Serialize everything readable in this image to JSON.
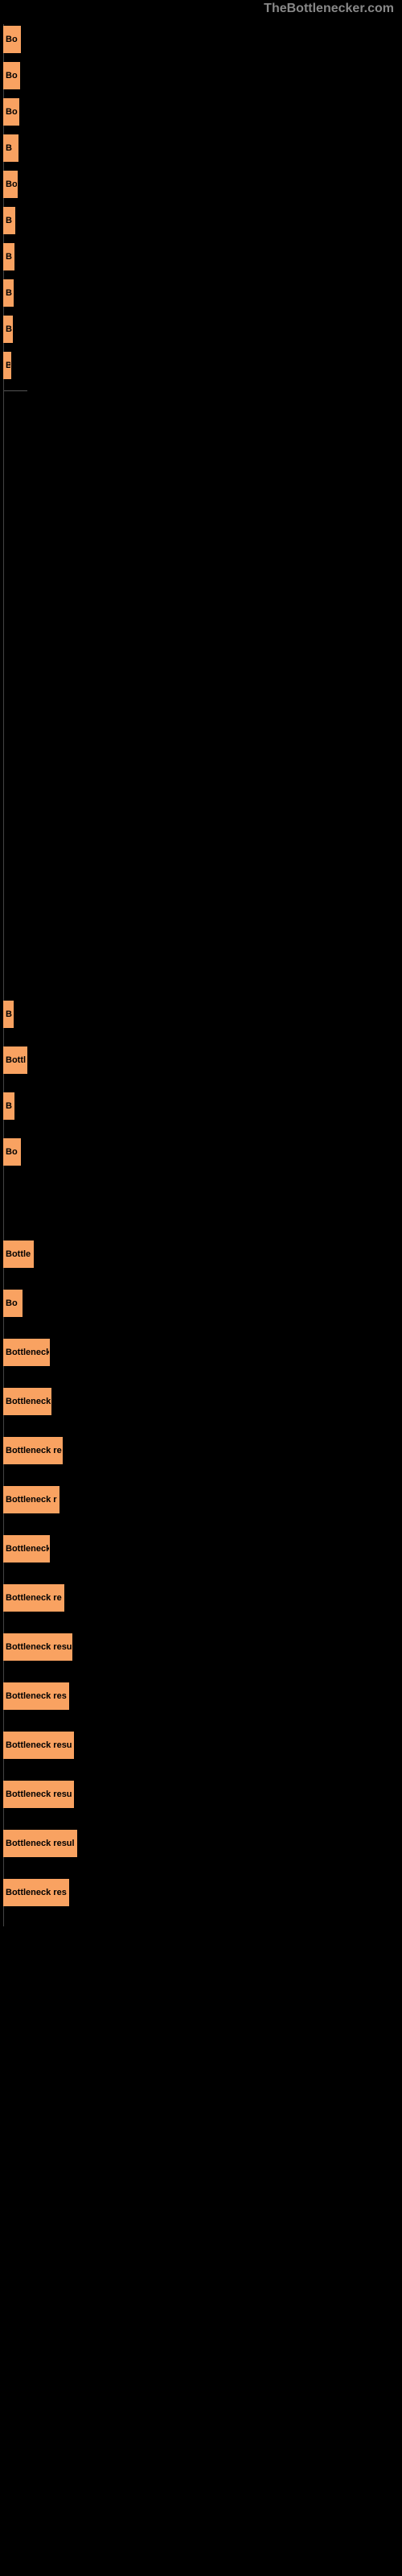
{
  "watermark": "TheBottlenecker.com",
  "chart": {
    "type": "bar",
    "background_color": "#000000",
    "bar_color": "#f9a261",
    "label_color": "#000000",
    "label_fontsize": 11,
    "label_fontweight": "bold",
    "bars": [
      {
        "label": "Bo",
        "width": 22
      },
      {
        "label": "Bo",
        "width": 21
      },
      {
        "label": "Bo",
        "width": 20
      },
      {
        "label": "B",
        "width": 19
      },
      {
        "label": "Bo",
        "width": 18
      },
      {
        "label": "B",
        "width": 15
      },
      {
        "label": "B",
        "width": 14
      },
      {
        "label": "B",
        "width": 13
      },
      {
        "label": "B",
        "width": 12
      },
      {
        "label": "B",
        "width": 10
      }
    ],
    "bars_section2": [
      {
        "label": "B",
        "width": 13
      },
      {
        "label": "Bottl",
        "width": 30
      },
      {
        "label": "B",
        "width": 14
      },
      {
        "label": "Bo",
        "width": 22
      }
    ],
    "bars_section3": [
      {
        "label": "Bottle",
        "width": 38
      },
      {
        "label": "Bo",
        "width": 24
      },
      {
        "label": "Bottleneck",
        "width": 58
      },
      {
        "label": "Bottleneck",
        "width": 60
      },
      {
        "label": "Bottleneck re",
        "width": 74
      },
      {
        "label": "Bottleneck r",
        "width": 70
      },
      {
        "label": "Bottleneck",
        "width": 58
      },
      {
        "label": "Bottleneck re",
        "width": 76
      },
      {
        "label": "Bottleneck resu",
        "width": 86
      },
      {
        "label": "Bottleneck res",
        "width": 82
      },
      {
        "label": "Bottleneck resu",
        "width": 88
      },
      {
        "label": "Bottleneck resu",
        "width": 88
      },
      {
        "label": "Bottleneck resul",
        "width": 92
      },
      {
        "label": "Bottleneck res",
        "width": 82
      }
    ],
    "section1_spacing": 6,
    "section2_start_gap": 750,
    "section3_start_gap": 70,
    "bar_row_height": 38
  }
}
